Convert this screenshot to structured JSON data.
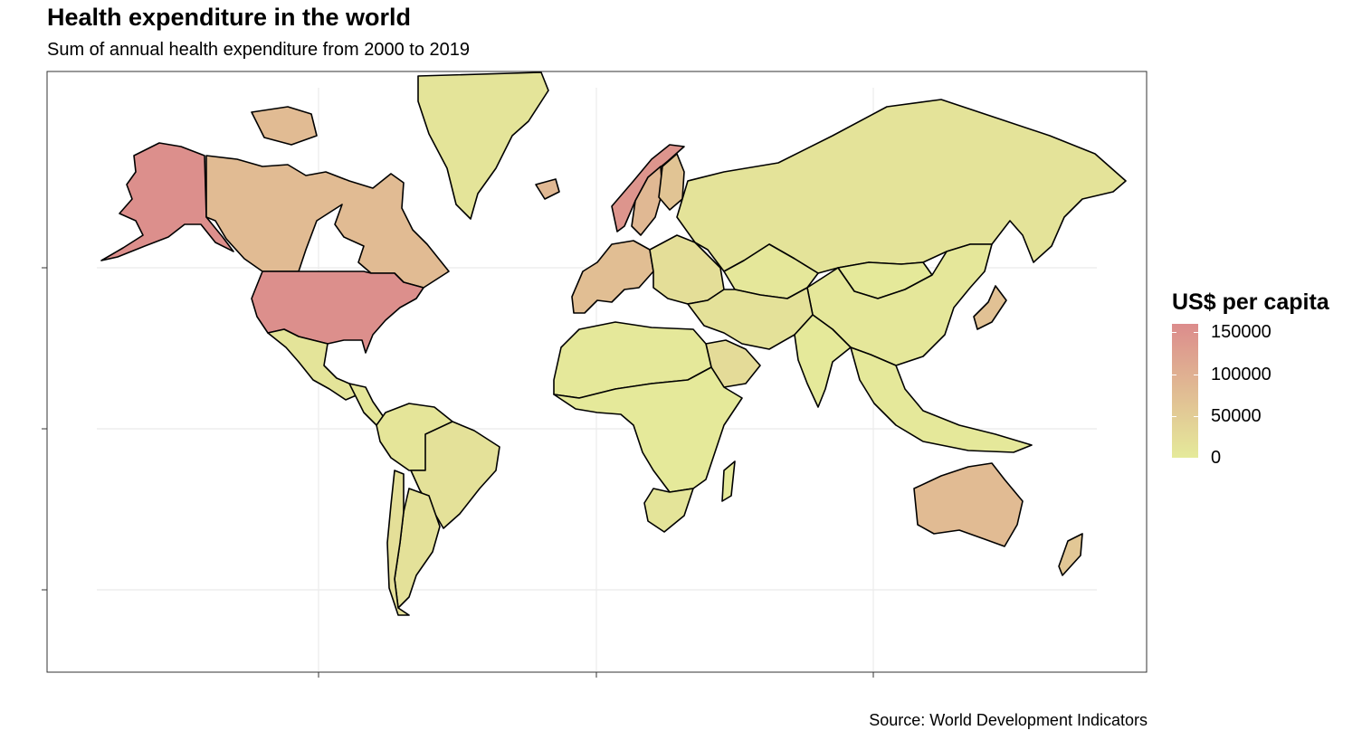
{
  "title": "Health expenditure in the world",
  "subtitle": "Sum of annual health expenditure from 2000 to 2019",
  "caption": "Source: World Development Indicators",
  "legend": {
    "title": "US$ per capita",
    "min": 0,
    "max": 160000,
    "breaks": [
      {
        "value": 150000,
        "label": "150000"
      },
      {
        "value": 100000,
        "label": "100000"
      },
      {
        "value": 50000,
        "label": "50000"
      },
      {
        "value": 0,
        "label": "0"
      }
    ],
    "color_low": "#e5ea9a",
    "color_high": "#dc8c8c"
  },
  "colors": {
    "panel_border": "#333333",
    "grid": "#ebebeb",
    "country_stroke": "#000000"
  },
  "chart_data": {
    "type": "choropleth",
    "value_unit": "US$ per capita",
    "gridlines": "on",
    "legend_position": "right",
    "regions": [
      {
        "name": "United States",
        "value": 155000
      },
      {
        "name": "Alaska (United States)",
        "value": 155000
      },
      {
        "name": "Norway",
        "value": 145000
      },
      {
        "name": "Canada",
        "value": 80000
      },
      {
        "name": "Australia",
        "value": 80000
      },
      {
        "name": "Sweden",
        "value": 85000
      },
      {
        "name": "Iceland",
        "value": 85000
      },
      {
        "name": "Western Europe",
        "value": 75000
      },
      {
        "name": "Finland",
        "value": 65000
      },
      {
        "name": "Japan",
        "value": 70000
      },
      {
        "name": "New Zealand",
        "value": 60000
      },
      {
        "name": "Greenland",
        "value": 10000
      },
      {
        "name": "Russia",
        "value": 12000
      },
      {
        "name": "China",
        "value": 5000
      },
      {
        "name": "Mongolia",
        "value": 2000
      },
      {
        "name": "Kazakhstan",
        "value": 5000
      },
      {
        "name": "Middle East",
        "value": 15000
      },
      {
        "name": "Saudi Arabia",
        "value": 25000
      },
      {
        "name": "India",
        "value": 1500
      },
      {
        "name": "Southeast Asia",
        "value": 3000
      },
      {
        "name": "North Africa",
        "value": 4000
      },
      {
        "name": "Sub-Saharan Africa",
        "value": 1500
      },
      {
        "name": "South Africa",
        "value": 10000
      },
      {
        "name": "Mexico",
        "value": 10000
      },
      {
        "name": "Central America",
        "value": 6000
      },
      {
        "name": "Brazil",
        "value": 15000
      },
      {
        "name": "Argentina",
        "value": 15000
      },
      {
        "name": "Chile",
        "value": 18000
      },
      {
        "name": "South America other",
        "value": 8000
      }
    ]
  }
}
